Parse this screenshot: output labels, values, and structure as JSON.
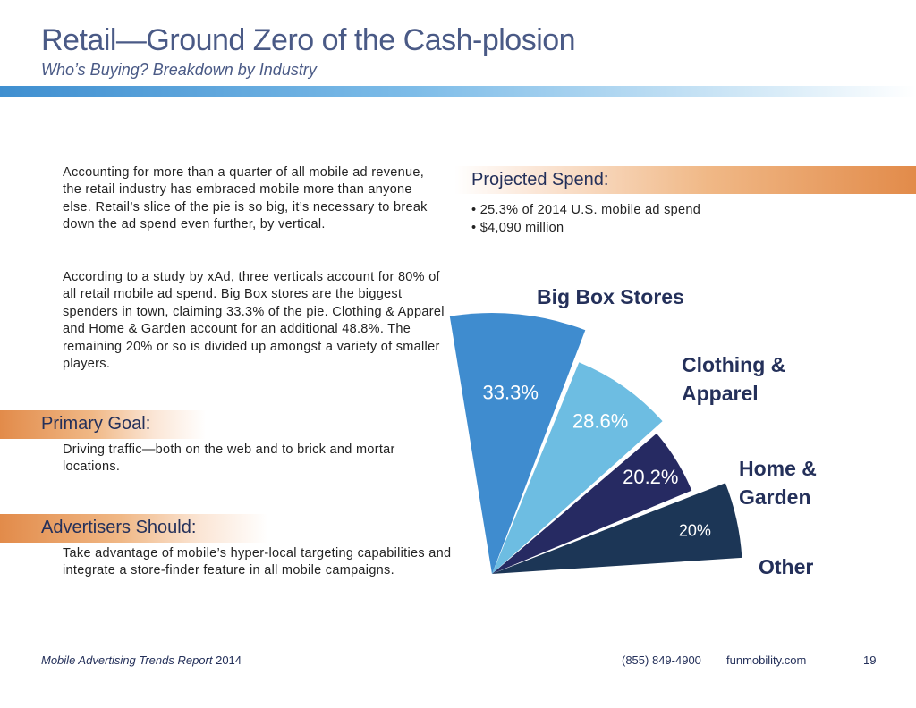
{
  "header": {
    "title": "Retail—Ground Zero of the Cash-plosion",
    "subtitle": "Who’s Buying? Breakdown by Industry"
  },
  "body": {
    "para1": "Accounting for more than a quarter of all mobile ad revenue, the retail industry has embraced mobile more than anyone else. Retail’s slice of the pie is so big, it’s necessary to break down the ad spend even further, by vertical.",
    "para2": "According to a study by xAd, three verticals account for 80% of all retail mobile ad spend. Big Box stores are the biggest spenders in town, claiming 33.3% of the pie. Clothing & Apparel and Home & Garden account for an additional 48.8%. The remaining 20% or so is divided up amongst a variety of smaller players."
  },
  "primary_goal": {
    "heading": "Primary Goal:",
    "text": "Driving traffic—both on the web and to brick and mortar locations."
  },
  "advertisers": {
    "heading": "Advertisers Should:",
    "text": "Take advantage of mobile’s hyper-local targeting capabilities and integrate a store-finder feature in all mobile campaigns."
  },
  "projected_spend": {
    "heading": "Projected Spend:",
    "bullets": [
      "• 25.3% of 2014 U.S. mobile ad spend",
      "• $4,090 million"
    ]
  },
  "chart_data": {
    "type": "pie",
    "title": "",
    "categories": [
      "Big Box Stores",
      "Clothing & Apparel",
      "Home & Garden",
      "Other"
    ],
    "category_lines": [
      [
        "Big Box Stores"
      ],
      [
        "Clothing &",
        "Apparel"
      ],
      [
        "Home &",
        "Garden"
      ],
      [
        "Other"
      ]
    ],
    "values": [
      33.3,
      28.6,
      20.2,
      20
    ],
    "value_labels": [
      "33.3%",
      "28.6%",
      "20.2%",
      "20%"
    ],
    "colors": [
      "#3f8ccf",
      "#6dbde2",
      "#262a62",
      "#1c3656"
    ],
    "legend": "none"
  },
  "footer": {
    "report_italic": "Mobile Advertising Trends Report",
    "report_year": " 2014",
    "phone": "(855) 849-4900",
    "site": "funmobility.com",
    "page": "19"
  }
}
